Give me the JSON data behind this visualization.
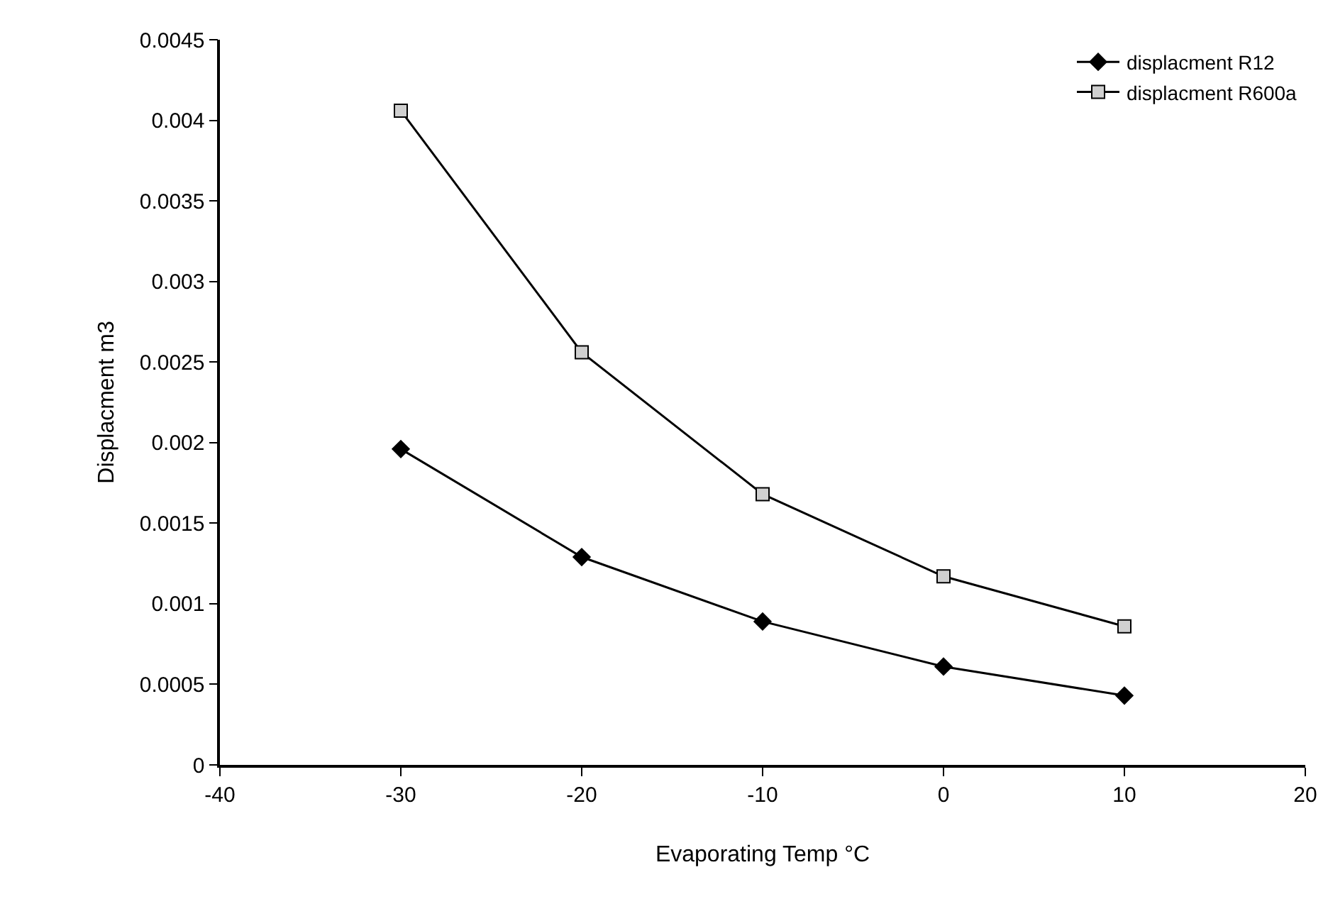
{
  "chart_data": {
    "type": "line",
    "xlabel": "Evaporating Temp °C",
    "ylabel": "Displacment m3",
    "x": [
      -30,
      -20,
      -10,
      0,
      10
    ],
    "series": [
      {
        "name": "displacment R12",
        "color": "#000000",
        "marker": "diamond",
        "values": [
          0.00196,
          0.00129,
          0.00089,
          0.00061,
          0.00043
        ]
      },
      {
        "name": "displacment R600a",
        "color": "#000000",
        "marker": "square",
        "values": [
          0.00406,
          0.00256,
          0.00168,
          0.00117,
          0.00086
        ]
      }
    ],
    "xlim": [
      -40,
      20
    ],
    "xticks": [
      -40,
      -30,
      -20,
      -10,
      0,
      10,
      20
    ],
    "ylim": [
      0,
      0.0045
    ],
    "yticks": [
      0,
      0.0005,
      0.001,
      0.0015,
      0.002,
      0.0025,
      0.003,
      0.0035,
      0.004,
      0.0045
    ],
    "grid": false,
    "legend": "top right",
    "line_style": "solid"
  }
}
